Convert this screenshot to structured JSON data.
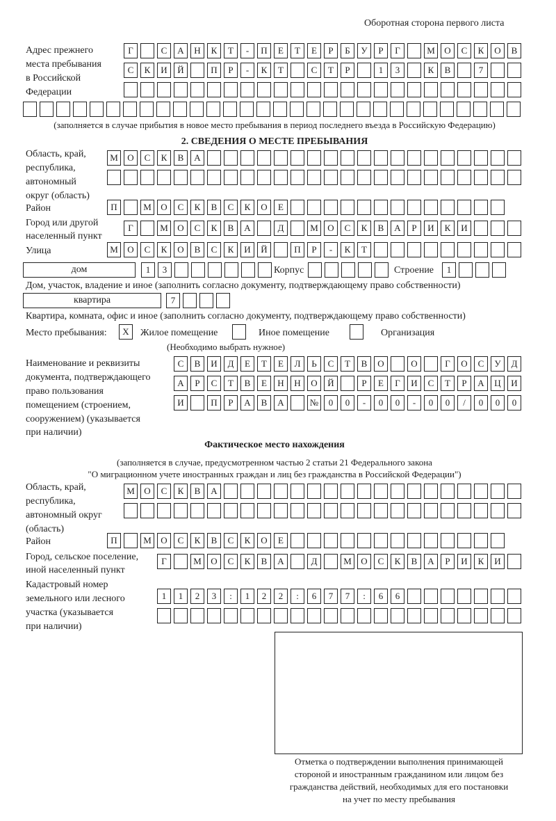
{
  "header": {
    "page_side": "Оборотная сторона первого листа"
  },
  "prev_address": {
    "label": [
      "Адрес прежнего",
      "места пребывания",
      "в Российской",
      "Федерации"
    ],
    "rows": [
      [
        "Г",
        " ",
        "С",
        "А",
        "Н",
        "К",
        "Т",
        "-",
        "П",
        "Е",
        "Т",
        "Е",
        "Р",
        "Б",
        "У",
        "Р",
        "Г",
        " ",
        "М",
        "О",
        "С",
        "К",
        "О",
        "В"
      ],
      [
        "С",
        "К",
        "И",
        "Й",
        " ",
        "П",
        "Р",
        "-",
        "К",
        "Т",
        " ",
        "С",
        "Т",
        "Р",
        " ",
        "1",
        "3",
        " ",
        "К",
        "В",
        " ",
        "7",
        " ",
        " "
      ],
      [
        " ",
        " ",
        " ",
        " ",
        " ",
        " ",
        " ",
        " ",
        " ",
        " ",
        " ",
        " ",
        " ",
        " ",
        " ",
        " ",
        " ",
        " ",
        " ",
        " ",
        " ",
        " ",
        " ",
        " "
      ],
      [
        " ",
        " ",
        " ",
        " ",
        " ",
        " ",
        " ",
        " ",
        " ",
        " ",
        " ",
        " ",
        " ",
        " ",
        " ",
        " ",
        " ",
        " ",
        " ",
        " ",
        " ",
        " ",
        " ",
        " ",
        " ",
        " ",
        " ",
        " ",
        " ",
        " "
      ]
    ],
    "note": "(заполняется в случае прибытия в новое место пребывания в период последнего въезда в Российскую Федерацию)"
  },
  "section2": {
    "title": "2. СВЕДЕНИЯ О МЕСТЕ ПРЕБЫВАНИЯ",
    "region_label": [
      "Область, край,",
      "республика,",
      "автономный",
      "округ (область)"
    ],
    "region_rows": [
      [
        "М",
        "О",
        "С",
        "К",
        "В",
        "А",
        " ",
        " ",
        " ",
        " ",
        " ",
        " ",
        " ",
        " ",
        " ",
        " ",
        " ",
        " ",
        " ",
        " ",
        " ",
        " ",
        " ",
        " ",
        " "
      ],
      [
        " ",
        " ",
        " ",
        " ",
        " ",
        " ",
        " ",
        " ",
        " ",
        " ",
        " ",
        " ",
        " ",
        " ",
        " ",
        " ",
        " ",
        " ",
        " ",
        " ",
        " ",
        " ",
        " ",
        " ",
        " "
      ]
    ],
    "district_label": "Район",
    "district": [
      "П",
      " ",
      "М",
      "О",
      "С",
      "К",
      "В",
      "С",
      "К",
      "О",
      "Е",
      " ",
      " ",
      " ",
      " ",
      " ",
      " ",
      " ",
      " ",
      " ",
      " ",
      " ",
      " ",
      " "
    ],
    "city_label": [
      "Город или другой",
      "населенный пункт"
    ],
    "city": [
      "Г",
      " ",
      "М",
      "О",
      "С",
      "К",
      "В",
      "А",
      " ",
      "Д",
      " ",
      "М",
      "О",
      "С",
      "К",
      "В",
      "А",
      "Р",
      "И",
      "К",
      "И",
      " ",
      " ",
      " "
    ],
    "street_label": "Улица",
    "street": [
      "М",
      "О",
      "С",
      "К",
      "О",
      "В",
      "С",
      "К",
      "И",
      "Й",
      " ",
      "П",
      "Р",
      "-",
      "К",
      "Т",
      " ",
      " ",
      " ",
      " ",
      " ",
      " ",
      " ",
      " ",
      " "
    ],
    "house_type": "дом",
    "house": [
      "1",
      "3",
      " ",
      " ",
      " ",
      " ",
      " ",
      " "
    ],
    "korpus_label": "Корпус",
    "korpus": [
      " ",
      " ",
      " ",
      " ",
      " "
    ],
    "building_label": "Строение",
    "building": [
      "1",
      " ",
      " ",
      " "
    ],
    "house_note": "Дом, участок, владение и иное (заполнить согласно документу, подтверждающему право собственности)",
    "flat_type": "квартира",
    "flat": [
      "7",
      " ",
      " ",
      " "
    ],
    "flat_note": "Квартира, комната, офис и иное (заполнить согласно документу, подтверждающему право собственности)",
    "stay_label": "Место пребывания:",
    "stay_options": [
      {
        "label": "Жилое помещение",
        "mark": "X"
      },
      {
        "label": "Иное помещение",
        "mark": ""
      },
      {
        "label": "Организация",
        "mark": ""
      }
    ],
    "stay_note": "(Необходимо выбрать нужное)",
    "doc_label": [
      "Наименование и реквизиты",
      "документа, подтверждающего",
      "право пользования",
      "помещением (строением,",
      "сооружением) (указывается",
      "при наличии)"
    ],
    "doc_rows": [
      [
        "С",
        "В",
        "И",
        "Д",
        "Е",
        "Т",
        "Е",
        "Л",
        "Ь",
        "С",
        "Т",
        "В",
        "О",
        " ",
        "О",
        " ",
        "Г",
        "О",
        "С",
        "У",
        "Д"
      ],
      [
        "А",
        "Р",
        "С",
        "Т",
        "В",
        "Е",
        "Н",
        "Н",
        "О",
        "Й",
        " ",
        "Р",
        "Е",
        "Г",
        "И",
        "С",
        "Т",
        "Р",
        "А",
        "Ц",
        "И"
      ],
      [
        "И",
        " ",
        "П",
        "Р",
        "А",
        "В",
        "А",
        " ",
        "№",
        "0",
        "0",
        "-",
        "0",
        "0",
        "-",
        "0",
        "0",
        "/",
        "0",
        "0",
        "0"
      ]
    ]
  },
  "actual": {
    "title": "Фактическое место нахождения",
    "note": [
      "(заполняется в случае, предусмотренном частью 2 статьи 21 Федерального закона",
      "\"О миграционном учете иностранных граждан и лиц без гражданства в Российской Федерации\")"
    ],
    "region_label": [
      "Область, край,",
      "республика,",
      "автономный округ",
      "(область)"
    ],
    "region_rows": [
      [
        "М",
        "О",
        "С",
        "К",
        "В",
        "А",
        " ",
        " ",
        " ",
        " ",
        " ",
        " ",
        " ",
        " ",
        " ",
        " ",
        " ",
        " ",
        " ",
        " ",
        " ",
        " ",
        " ",
        " "
      ],
      [
        " ",
        " ",
        " ",
        " ",
        " ",
        " ",
        " ",
        " ",
        " ",
        " ",
        " ",
        " ",
        " ",
        " ",
        " ",
        " ",
        " ",
        " ",
        " ",
        " ",
        " ",
        " ",
        " ",
        " "
      ]
    ],
    "district_label": "Район",
    "district": [
      "П",
      " ",
      "М",
      "О",
      "С",
      "К",
      "В",
      "С",
      "К",
      "О",
      "Е",
      " ",
      " ",
      " ",
      " ",
      " ",
      " ",
      " ",
      " ",
      " ",
      " ",
      " ",
      " ",
      " "
    ],
    "city_label": [
      "Город, сельское поселение,",
      "иной населенный пункт"
    ],
    "city": [
      "Г",
      " ",
      "М",
      "О",
      "С",
      "К",
      "В",
      "А",
      " ",
      "Д",
      " ",
      "М",
      "О",
      "С",
      "К",
      "В",
      "А",
      "Р",
      "И",
      "К",
      "И",
      " "
    ],
    "cadastral_label": [
      "Кадастровый номер",
      "земельного или лесного",
      "участка (указывается",
      "при наличии)"
    ],
    "cadastral_rows": [
      [
        "1",
        "1",
        "2",
        "3",
        ":",
        "1",
        "2",
        "2",
        ":",
        "6",
        "7",
        "7",
        ":",
        "6",
        "6",
        " ",
        " ",
        " ",
        " ",
        " ",
        " ",
        " "
      ],
      [
        " ",
        " ",
        " ",
        " ",
        " ",
        " ",
        " ",
        " ",
        " ",
        " ",
        " ",
        " ",
        " ",
        " ",
        " ",
        " ",
        " ",
        " ",
        " ",
        " ",
        " ",
        " "
      ]
    ]
  },
  "stamp": {
    "caption": [
      "Отметка о подтверждении выполнения принимающей",
      "стороной и иностранным гражданином или лицом без",
      "гражданства действий, необходимых для его постановки",
      "на учет по месту пребывания"
    ]
  }
}
